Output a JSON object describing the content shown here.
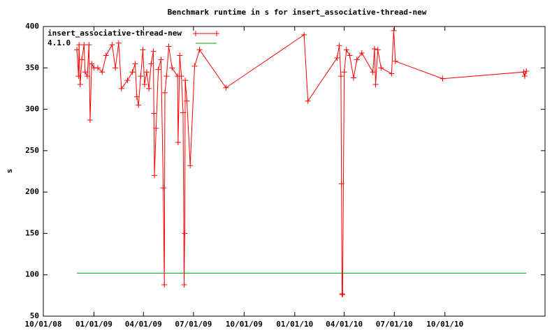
{
  "chart_data": {
    "type": "line",
    "title": "Benchmark runtime in s for insert_associative-thread-new",
    "y_label": "s",
    "xlim": [
      "2008-10-01",
      "2011-04-01"
    ],
    "xticks": [
      {
        "value": "2008-10-01",
        "label": "10/01/08"
      },
      {
        "value": "2009-01-01",
        "label": "01/01/09"
      },
      {
        "value": "2009-04-01",
        "label": "04/01/09"
      },
      {
        "value": "2009-07-01",
        "label": "07/01/09"
      },
      {
        "value": "2009-10-01",
        "label": "10/01/09"
      },
      {
        "value": "2010-01-01",
        "label": "01/01/10"
      },
      {
        "value": "2010-04-01",
        "label": "04/01/10"
      },
      {
        "value": "2010-07-01",
        "label": "07/01/10"
      },
      {
        "value": "2010-10-01",
        "label": "10/01/10"
      }
    ],
    "ylim": [
      50,
      400
    ],
    "yticks": [
      50,
      100,
      150,
      200,
      250,
      300,
      350,
      400
    ],
    "grid": false,
    "legend": "top-left",
    "series": [
      {
        "name": "insert_associative-thread-new",
        "color": "#ff0000",
        "markers": true,
        "x": [
          "2008-12-01",
          "2008-12-04",
          "2008-12-05",
          "2008-12-07",
          "2008-12-10",
          "2008-12-14",
          "2008-12-16",
          "2008-12-20",
          "2008-12-23",
          "2008-12-25",
          "2008-12-28",
          "2009-01-01",
          "2009-01-08",
          "2009-01-16",
          "2009-01-23",
          "2009-02-03",
          "2009-02-09",
          "2009-02-15",
          "2009-02-20",
          "2009-03-03",
          "2009-03-12",
          "2009-03-17",
          "2009-03-20",
          "2009-03-23",
          "2009-03-27",
          "2009-03-31",
          "2009-04-03",
          "2009-04-07",
          "2009-04-11",
          "2009-04-15",
          "2009-04-19",
          "2009-04-20",
          "2009-04-21",
          "2009-04-24",
          "2009-04-28",
          "2009-05-03",
          "2009-05-07",
          "2009-05-09",
          "2009-05-10",
          "2009-05-13",
          "2009-05-17",
          "2009-05-23",
          "2009-06-02",
          "2009-06-03",
          "2009-06-06",
          "2009-06-09",
          "2009-06-12",
          "2009-06-14",
          "2009-06-15",
          "2009-06-16",
          "2009-06-19",
          "2009-06-25",
          "2009-07-03",
          "2009-07-12",
          "2009-08-29",
          "2010-01-18",
          "2010-01-25",
          "2010-03-19",
          "2010-03-23",
          "2010-03-26",
          "2010-03-27",
          "2010-03-28",
          "2010-03-29",
          "2010-04-01",
          "2010-04-05",
          "2010-04-11",
          "2010-04-18",
          "2010-04-24",
          "2010-05-03",
          "2010-05-23",
          "2010-05-26",
          "2010-05-28",
          "2010-06-01",
          "2010-06-07",
          "2010-06-26",
          "2010-06-30",
          "2010-07-03",
          "2010-09-27",
          "2011-02-21",
          "2011-02-23",
          "2011-02-26"
        ],
        "values": [
          372,
          340,
          378,
          330,
          360,
          378,
          345,
          340,
          378,
          287,
          355,
          350,
          350,
          345,
          365,
          378,
          350,
          380,
          325,
          335,
          345,
          355,
          315,
          305,
          340,
          372,
          330,
          345,
          325,
          355,
          370,
          295,
          220,
          277,
          348,
          360,
          205,
          88,
          320,
          340,
          376,
          350,
          340,
          260,
          365,
          340,
          296,
          88,
          150,
          335,
          310,
          232,
          352,
          372,
          326,
          390,
          310,
          362,
          377,
          340,
          210,
          77,
          76,
          345,
          372,
          365,
          338,
          360,
          368,
          345,
          373,
          330,
          372,
          350,
          343,
          395,
          358,
          337,
          345,
          340,
          346
        ]
      },
      {
        "name": "4.1.0",
        "color": "#00a000",
        "markers": false,
        "x": [
          "2008-12-01",
          "2011-02-26"
        ],
        "values": [
          102,
          102
        ]
      }
    ]
  }
}
